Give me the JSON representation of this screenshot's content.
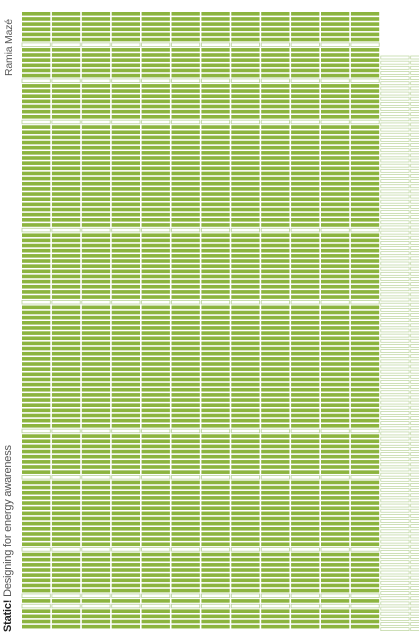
{
  "cover": {
    "author": "Ramia Mazé",
    "title_strong": "Static!",
    "title_rest": " Designing for energy awareness"
  },
  "colors": {
    "bar_fill": "#8cb43f",
    "bar_outline": "#b9d39a",
    "background": "#ffffff",
    "text": "#3f3f3f"
  },
  "pattern": {
    "columns_filled": 12,
    "columns_outline": 2,
    "description_rows": "horizontal dashed bars"
  }
}
